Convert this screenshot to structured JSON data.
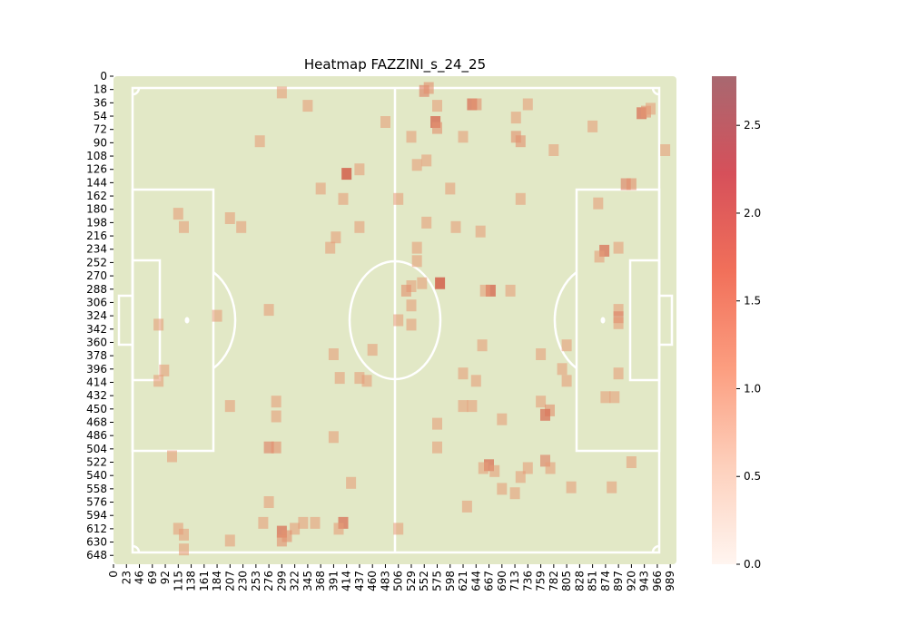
{
  "chart_data": {
    "type": "heatmap",
    "title": "Heatmap FAZZINI_s_24_25",
    "xlabel": "",
    "ylabel": "",
    "x_ticks": [
      "0",
      "23",
      "46",
      "69",
      "92",
      "115",
      "138",
      "161",
      "184",
      "207",
      "230",
      "253",
      "276",
      "299",
      "322",
      "345",
      "368",
      "391",
      "414",
      "437",
      "460",
      "483",
      "506",
      "529",
      "552",
      "575",
      "598",
      "621",
      "644",
      "667",
      "690",
      "713",
      "736",
      "759",
      "782",
      "805",
      "828",
      "851",
      "874",
      "897",
      "920",
      "943",
      "966",
      "989"
    ],
    "y_ticks": [
      "0",
      "18",
      "36",
      "54",
      "72",
      "90",
      "108",
      "126",
      "144",
      "162",
      "180",
      "198",
      "216",
      "234",
      "252",
      "270",
      "288",
      "306",
      "324",
      "342",
      "360",
      "378",
      "396",
      "414",
      "432",
      "450",
      "468",
      "486",
      "504",
      "522",
      "540",
      "558",
      "576",
      "594",
      "612",
      "630",
      "648"
    ],
    "xlim": [
      0,
      1000
    ],
    "ylim": [
      0,
      660
    ],
    "colorbar": {
      "min": 0.0,
      "max": 2.78,
      "ticks": [
        "0.0",
        "0.5",
        "1.0",
        "1.5",
        "2.0",
        "2.5"
      ],
      "colors": [
        "#fff5f0",
        "#fdd0bc",
        "#fc9e80",
        "#f1705a",
        "#d6505a",
        "#a86870"
      ]
    },
    "pitch_color": "#e2e8c6",
    "line_color": "#ffffff",
    "points": [
      {
        "x": 299,
        "y": 22,
        "v": 0.9
      },
      {
        "x": 345,
        "y": 40,
        "v": 0.9
      },
      {
        "x": 552,
        "y": 20,
        "v": 1.1
      },
      {
        "x": 560,
        "y": 16,
        "v": 1.0
      },
      {
        "x": 575,
        "y": 40,
        "v": 0.9
      },
      {
        "x": 637,
        "y": 38,
        "v": 1.3
      },
      {
        "x": 645,
        "y": 38,
        "v": 1.0
      },
      {
        "x": 736,
        "y": 38,
        "v": 0.9
      },
      {
        "x": 938,
        "y": 50,
        "v": 1.3
      },
      {
        "x": 946,
        "y": 48,
        "v": 1.0
      },
      {
        "x": 954,
        "y": 44,
        "v": 0.9
      },
      {
        "x": 483,
        "y": 62,
        "v": 0.9
      },
      {
        "x": 572,
        "y": 62,
        "v": 1.4
      },
      {
        "x": 575,
        "y": 70,
        "v": 1.0
      },
      {
        "x": 715,
        "y": 56,
        "v": 0.9
      },
      {
        "x": 851,
        "y": 68,
        "v": 0.9
      },
      {
        "x": 529,
        "y": 82,
        "v": 0.9
      },
      {
        "x": 621,
        "y": 82,
        "v": 0.9
      },
      {
        "x": 715,
        "y": 82,
        "v": 1.0
      },
      {
        "x": 723,
        "y": 88,
        "v": 1.0
      },
      {
        "x": 260,
        "y": 88,
        "v": 0.9
      },
      {
        "x": 782,
        "y": 100,
        "v": 0.9
      },
      {
        "x": 980,
        "y": 100,
        "v": 0.9
      },
      {
        "x": 539,
        "y": 120,
        "v": 0.9
      },
      {
        "x": 556,
        "y": 114,
        "v": 0.9
      },
      {
        "x": 414,
        "y": 132,
        "v": 1.5
      },
      {
        "x": 437,
        "y": 126,
        "v": 0.9
      },
      {
        "x": 368,
        "y": 152,
        "v": 0.9
      },
      {
        "x": 598,
        "y": 152,
        "v": 0.9
      },
      {
        "x": 910,
        "y": 146,
        "v": 1.1
      },
      {
        "x": 920,
        "y": 146,
        "v": 1.0
      },
      {
        "x": 408,
        "y": 166,
        "v": 0.9
      },
      {
        "x": 506,
        "y": 166,
        "v": 0.9
      },
      {
        "x": 723,
        "y": 166,
        "v": 0.9
      },
      {
        "x": 861,
        "y": 172,
        "v": 0.9
      },
      {
        "x": 115,
        "y": 186,
        "v": 0.9
      },
      {
        "x": 207,
        "y": 192,
        "v": 0.9
      },
      {
        "x": 125,
        "y": 204,
        "v": 0.9
      },
      {
        "x": 227,
        "y": 204,
        "v": 0.9
      },
      {
        "x": 437,
        "y": 204,
        "v": 0.9
      },
      {
        "x": 556,
        "y": 198,
        "v": 0.9
      },
      {
        "x": 608,
        "y": 204,
        "v": 0.9
      },
      {
        "x": 395,
        "y": 218,
        "v": 0.9
      },
      {
        "x": 652,
        "y": 210,
        "v": 0.9
      },
      {
        "x": 385,
        "y": 232,
        "v": 0.9
      },
      {
        "x": 539,
        "y": 232,
        "v": 0.9
      },
      {
        "x": 872,
        "y": 236,
        "v": 1.3
      },
      {
        "x": 863,
        "y": 244,
        "v": 0.9
      },
      {
        "x": 897,
        "y": 232,
        "v": 0.9
      },
      {
        "x": 539,
        "y": 250,
        "v": 0.9
      },
      {
        "x": 529,
        "y": 284,
        "v": 0.9
      },
      {
        "x": 520,
        "y": 290,
        "v": 1.0
      },
      {
        "x": 548,
        "y": 280,
        "v": 0.9
      },
      {
        "x": 580,
        "y": 280,
        "v": 1.5
      },
      {
        "x": 670,
        "y": 290,
        "v": 1.4
      },
      {
        "x": 660,
        "y": 290,
        "v": 0.9
      },
      {
        "x": 705,
        "y": 290,
        "v": 0.9
      },
      {
        "x": 897,
        "y": 316,
        "v": 0.9
      },
      {
        "x": 897,
        "y": 326,
        "v": 1.1
      },
      {
        "x": 897,
        "y": 334,
        "v": 0.9
      },
      {
        "x": 184,
        "y": 324,
        "v": 0.9
      },
      {
        "x": 276,
        "y": 316,
        "v": 0.9
      },
      {
        "x": 529,
        "y": 310,
        "v": 0.9
      },
      {
        "x": 506,
        "y": 330,
        "v": 0.9
      },
      {
        "x": 529,
        "y": 336,
        "v": 0.9
      },
      {
        "x": 80,
        "y": 336,
        "v": 0.9
      },
      {
        "x": 655,
        "y": 364,
        "v": 0.9
      },
      {
        "x": 805,
        "y": 364,
        "v": 0.9
      },
      {
        "x": 460,
        "y": 370,
        "v": 0.9
      },
      {
        "x": 391,
        "y": 376,
        "v": 0.9
      },
      {
        "x": 759,
        "y": 376,
        "v": 0.9
      },
      {
        "x": 90,
        "y": 398,
        "v": 0.9
      },
      {
        "x": 80,
        "y": 412,
        "v": 0.9
      },
      {
        "x": 402,
        "y": 408,
        "v": 0.9
      },
      {
        "x": 437,
        "y": 408,
        "v": 0.9
      },
      {
        "x": 450,
        "y": 412,
        "v": 0.9
      },
      {
        "x": 621,
        "y": 402,
        "v": 0.9
      },
      {
        "x": 644,
        "y": 412,
        "v": 0.9
      },
      {
        "x": 797,
        "y": 396,
        "v": 0.9
      },
      {
        "x": 805,
        "y": 412,
        "v": 0.9
      },
      {
        "x": 897,
        "y": 402,
        "v": 0.9
      },
      {
        "x": 874,
        "y": 434,
        "v": 0.9
      },
      {
        "x": 890,
        "y": 434,
        "v": 0.9
      },
      {
        "x": 207,
        "y": 446,
        "v": 0.9
      },
      {
        "x": 289,
        "y": 440,
        "v": 0.9
      },
      {
        "x": 289,
        "y": 460,
        "v": 0.9
      },
      {
        "x": 621,
        "y": 446,
        "v": 0.9
      },
      {
        "x": 637,
        "y": 446,
        "v": 0.9
      },
      {
        "x": 759,
        "y": 440,
        "v": 0.9
      },
      {
        "x": 775,
        "y": 452,
        "v": 1.0
      },
      {
        "x": 767,
        "y": 458,
        "v": 1.3
      },
      {
        "x": 690,
        "y": 464,
        "v": 0.9
      },
      {
        "x": 575,
        "y": 470,
        "v": 0.9
      },
      {
        "x": 391,
        "y": 488,
        "v": 0.9
      },
      {
        "x": 276,
        "y": 502,
        "v": 1.1
      },
      {
        "x": 289,
        "y": 502,
        "v": 1.0
      },
      {
        "x": 575,
        "y": 502,
        "v": 0.9
      },
      {
        "x": 104,
        "y": 514,
        "v": 0.9
      },
      {
        "x": 667,
        "y": 526,
        "v": 1.3
      },
      {
        "x": 657,
        "y": 530,
        "v": 0.9
      },
      {
        "x": 677,
        "y": 534,
        "v": 0.9
      },
      {
        "x": 736,
        "y": 530,
        "v": 0.9
      },
      {
        "x": 767,
        "y": 520,
        "v": 1.1
      },
      {
        "x": 776,
        "y": 530,
        "v": 0.9
      },
      {
        "x": 920,
        "y": 522,
        "v": 0.9
      },
      {
        "x": 723,
        "y": 542,
        "v": 0.9
      },
      {
        "x": 422,
        "y": 550,
        "v": 0.9
      },
      {
        "x": 690,
        "y": 558,
        "v": 0.9
      },
      {
        "x": 713,
        "y": 564,
        "v": 0.9
      },
      {
        "x": 813,
        "y": 556,
        "v": 0.9
      },
      {
        "x": 885,
        "y": 556,
        "v": 0.9
      },
      {
        "x": 276,
        "y": 576,
        "v": 0.9
      },
      {
        "x": 628,
        "y": 582,
        "v": 0.9
      },
      {
        "x": 266,
        "y": 604,
        "v": 0.9
      },
      {
        "x": 337,
        "y": 604,
        "v": 0.9
      },
      {
        "x": 358,
        "y": 604,
        "v": 0.9
      },
      {
        "x": 408,
        "y": 604,
        "v": 1.3
      },
      {
        "x": 400,
        "y": 612,
        "v": 0.9
      },
      {
        "x": 322,
        "y": 612,
        "v": 0.9
      },
      {
        "x": 299,
        "y": 616,
        "v": 1.3
      },
      {
        "x": 308,
        "y": 622,
        "v": 1.0
      },
      {
        "x": 299,
        "y": 628,
        "v": 1.0
      },
      {
        "x": 115,
        "y": 612,
        "v": 0.9
      },
      {
        "x": 125,
        "y": 620,
        "v": 0.9
      },
      {
        "x": 125,
        "y": 640,
        "v": 0.9
      },
      {
        "x": 207,
        "y": 628,
        "v": 0.9
      },
      {
        "x": 506,
        "y": 612,
        "v": 0.9
      }
    ]
  }
}
